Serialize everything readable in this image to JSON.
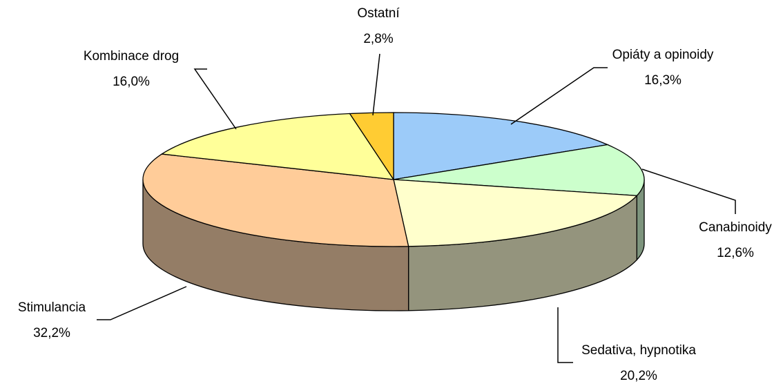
{
  "chart_data": {
    "type": "pie3d",
    "categories": [
      "Opiáty a opinoidy",
      "Canabinoidy",
      "Sedativa, hypnotika",
      "Stimulancia",
      "Kombinace drog",
      "Ostatní"
    ],
    "values": [
      16.3,
      12.6,
      20.2,
      32.2,
      16.0,
      2.8
    ],
    "value_labels": [
      "16,3%",
      "12,6%",
      "20,2%",
      "32,2%",
      "16,0%",
      "2,8%"
    ],
    "colors": [
      "#9ccbf9",
      "#ccffcc",
      "#ffffcc",
      "#ffcc99",
      "#ffff99",
      "#ffcc33"
    ]
  }
}
